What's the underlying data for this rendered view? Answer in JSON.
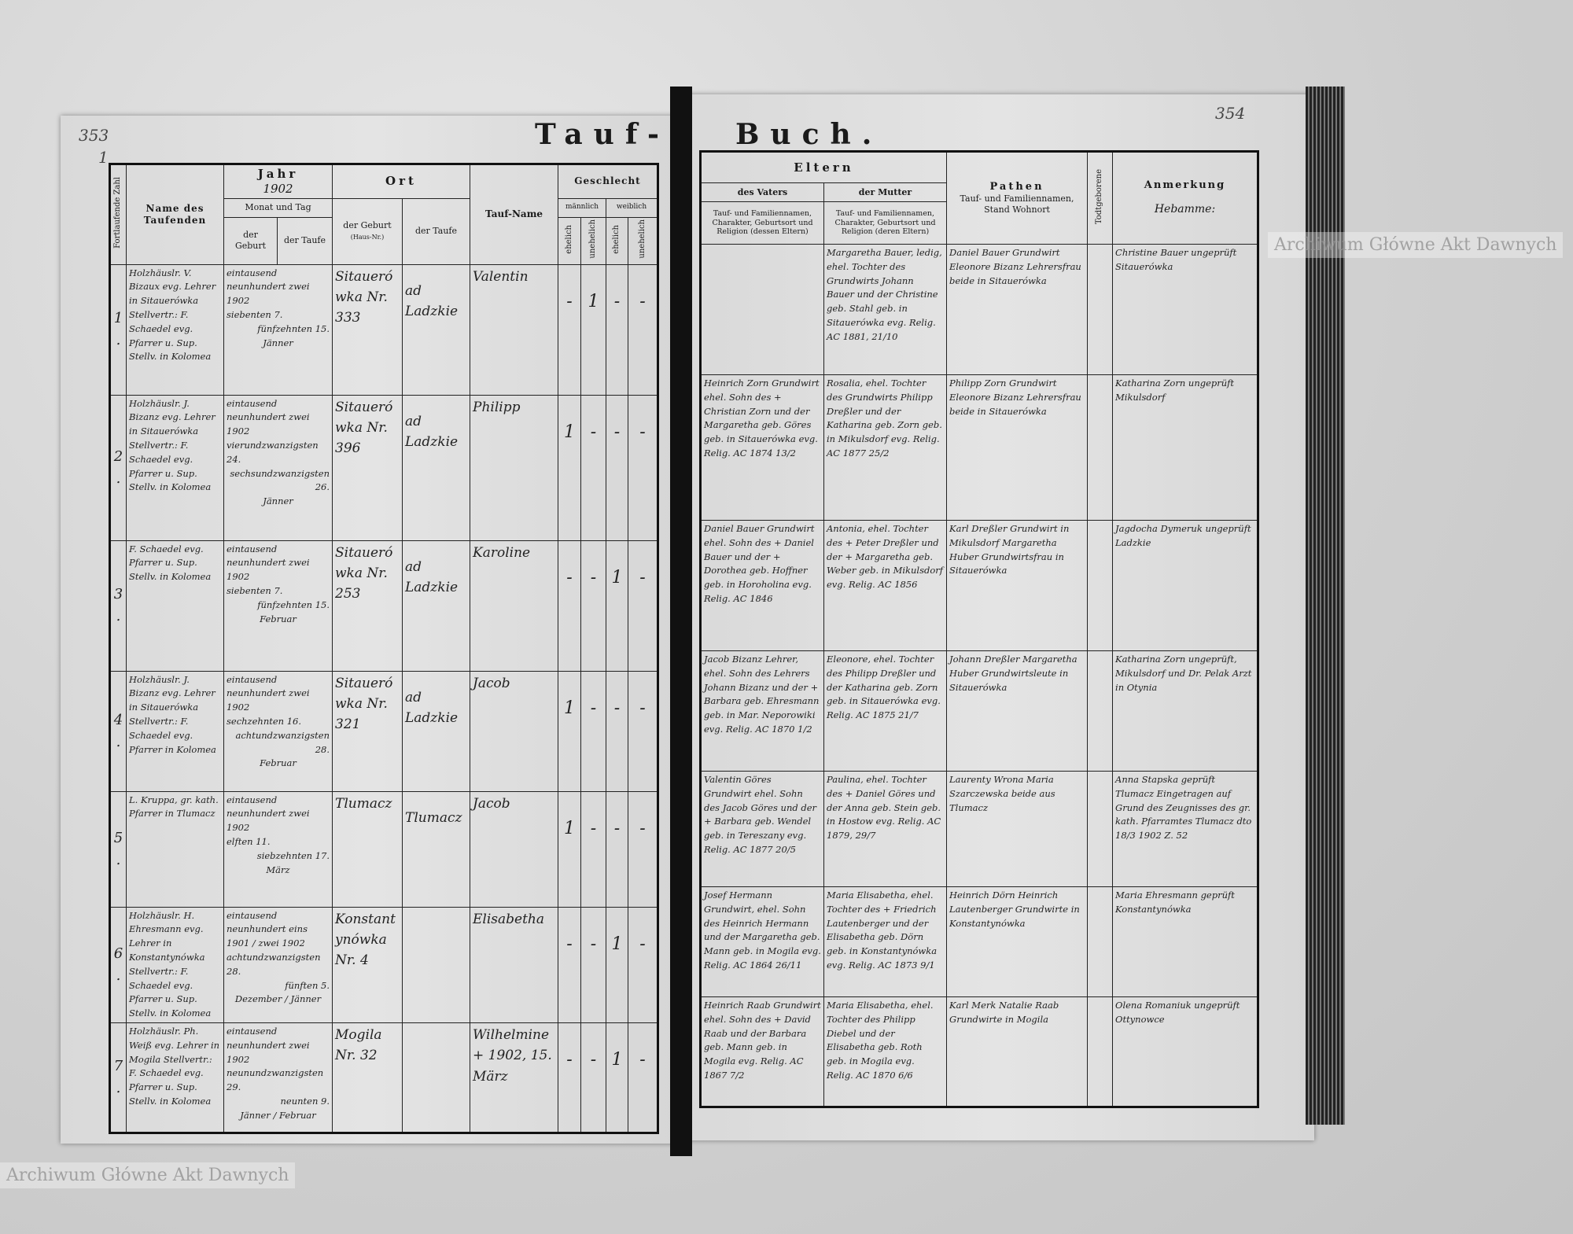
{
  "title_left": "Tauf-",
  "title_right": "Buch.",
  "page_numbers": {
    "left": "353",
    "left_sub": "1",
    "right": "354"
  },
  "watermark": "Archiwum Główne Akt Dawnych",
  "left_headers": {
    "zahl": "Fortlaufende Zahl",
    "name": "Name des Taufenden",
    "jahr": "Jahr",
    "jahr_value": "1902",
    "monat_tag": "Monat und Tag",
    "der_geburt": "der Geburt",
    "der_taufe": "der Taufe",
    "ort": "Ort",
    "ort_geburt": "der Geburt",
    "hausnr": "(Haus-Nr.)",
    "ort_taufe": "der Taufe",
    "taufname": "Tauf-Name",
    "geschlecht": "Geschlecht",
    "maennlich": "männlich",
    "weiblich": "weiblich",
    "ehelich": "ehelich",
    "unehelich": "unehelich"
  },
  "right_headers": {
    "eltern": "Eltern",
    "vater": "des Vaters",
    "mutter": "der Mutter",
    "vater_sub": "Tauf- und Familiennamen, Charakter, Geburtsort und Religion (dessen Eltern)",
    "mutter_sub": "Tauf- und Familiennamen, Charakter, Geburtsort und Religion (deren Eltern)",
    "pathen": "Pathen",
    "pathen_sub": "Tauf- und Familiennamen, Stand Wohnort",
    "todtgeborene": "Todtgeborene",
    "anmerkung": "Anmerkung",
    "anmerkung_note": "Hebamme:"
  },
  "entries": [
    {
      "no": "1.",
      "name": "Holzhäuslr. V. Bizaux evg. Lehrer in Sitauerówka Stellvertr.: F. Schaedel evg. Pfarrer u. Sup. Stellv. in Kolomea",
      "geburt": "siebenten 7.",
      "taufe": "fünfzehnten 15.",
      "year_words": "eintausend neunhundert zwei 1902",
      "month": "Jänner",
      "ort_geburt": "Sitauerówka Nr. 333",
      "ort_taufe": "ad Ladzkie",
      "taufname": "Valentin",
      "sex": [
        "-",
        "1",
        "-",
        "-"
      ],
      "vater": "",
      "mutter": "Margaretha Bauer, ledig, ehel. Tochter des Grundwirts Johann Bauer und der Christine geb. Stahl geb. in Sitauerówka evg. Relig. AC 1881, 21/10",
      "pathen": "Daniel Bauer Grundwirt Eleonore Bizanz Lehrersfrau beide in Sitauerówka",
      "tot": "",
      "anmerkung": "Christine Bauer ungeprüft Sitauerówka"
    },
    {
      "no": "2.",
      "name": "Holzhäuslr. J. Bizanz evg. Lehrer in Sitauerówka Stellvertr.: F. Schaedel evg. Pfarrer u. Sup. Stellv. in Kolomea",
      "geburt": "vierundzwanzigsten 24.",
      "taufe": "sechsundzwanzigsten 26.",
      "year_words": "eintausend neunhundert zwei 1902",
      "month": "Jänner",
      "ort_geburt": "Sitauerówka Nr. 396",
      "ort_taufe": "ad Ladzkie",
      "taufname": "Philipp",
      "sex": [
        "1",
        "-",
        "-",
        "-"
      ],
      "vater": "Heinrich Zorn Grundwirt ehel. Sohn des + Christian Zorn und der Margaretha geb. Göres geb. in Sitauerówka evg. Relig. AC 1874 13/2",
      "mutter": "Rosalia, ehel. Tochter des Grundwirts Philipp Dreßler und der Katharina geb. Zorn geb. in Mikulsdorf evg. Relig. AC 1877 25/2",
      "pathen": "Philipp Zorn Grundwirt Eleonore Bizanz Lehrersfrau beide in Sitauerówka",
      "tot": "",
      "anmerkung": "Katharina Zorn ungeprüft Mikulsdorf"
    },
    {
      "no": "3.",
      "name": "F. Schaedel evg. Pfarrer u. Sup. Stellv. in Kolomea",
      "geburt": "siebenten 7.",
      "taufe": "fünfzehnten 15.",
      "year_words": "eintausend neunhundert zwei 1902",
      "month": "Februar",
      "ort_geburt": "Sitauerówka Nr. 253",
      "ort_taufe": "ad Ladzkie",
      "taufname": "Karoline",
      "sex": [
        "-",
        "-",
        "1",
        "-"
      ],
      "vater": "Daniel Bauer Grundwirt ehel. Sohn des + Daniel Bauer und der + Dorothea geb. Hoffner geb. in Horoholina evg. Relig. AC 1846",
      "mutter": "Antonia, ehel. Tochter des + Peter Dreßler und der + Margaretha geb. Weber geb. in Mikulsdorf evg. Relig. AC 1856",
      "pathen": "Karl Dreßler Grundwirt in Mikulsdorf Margaretha Huber Grundwirtsfrau in Sitauerówka",
      "tot": "",
      "anmerkung": "Jagdocha Dymeruk ungeprüft Ladzkie"
    },
    {
      "no": "4.",
      "name": "Holzhäuslr. J. Bizanz evg. Lehrer in Sitauerówka Stellvertr.: F. Schaedel evg. Pfarrer in Kolomea",
      "geburt": "sechzehnten 16.",
      "taufe": "achtundzwanzigsten 28.",
      "year_words": "eintausend neunhundert zwei 1902",
      "month": "Februar",
      "ort_geburt": "Sitauerówka Nr. 321",
      "ort_taufe": "ad Ladzkie",
      "taufname": "Jacob",
      "sex": [
        "1",
        "-",
        "-",
        "-"
      ],
      "vater": "Jacob Bizanz Lehrer, ehel. Sohn des Lehrers Johann Bizanz und der + Barbara geb. Ehresmann geb. in Mar. Neporowiki evg. Relig. AC 1870 1/2",
      "mutter": "Eleonore, ehel. Tochter des Philipp Dreßler und der Katharina geb. Zorn geb. in Sitauerówka evg. Relig. AC 1875 21/7",
      "pathen": "Johann Dreßler Margaretha Huber Grundwirtsleute in Sitauerówka",
      "tot": "",
      "anmerkung": "Katharina Zorn ungeprüft, Mikulsdorf und Dr. Pelak Arzt in Otynia"
    },
    {
      "no": "5.",
      "name": "L. Kruppa, gr. kath. Pfarrer in Tlumacz",
      "geburt": "elften 11.",
      "taufe": "siebzehnten 17.",
      "year_words": "eintausend neunhundert zwei 1902",
      "month": "März",
      "ort_geburt": "Tlumacz",
      "ort_taufe": "Tlumacz",
      "taufname": "Jacob",
      "sex": [
        "1",
        "-",
        "-",
        "-"
      ],
      "vater": "Valentin Göres Grundwirt ehel. Sohn des Jacob Göres und der + Barbara geb. Wendel geb. in Tereszany evg. Relig. AC 1877 20/5",
      "mutter": "Paulina, ehel. Tochter des + Daniel Göres und der Anna geb. Stein geb. in Hostow evg. Relig. AC 1879, 29/7",
      "pathen": "Laurenty Wrona Maria Szarczewska beide aus Tlumacz",
      "tot": "",
      "anmerkung": "Anna Stapska geprüft Tlumacz Eingetragen auf Grund des Zeugnisses des gr. kath. Pfarramtes Tlumacz dto 18/3 1902 Z. 52"
    },
    {
      "no": "6.",
      "name": "Holzhäuslr. H. Ehresmann evg. Lehrer in Konstantynówka Stellvertr.: F. Schaedel evg. Pfarrer u. Sup. Stellv. in Kolomea",
      "geburt": "achtundzwanzigsten 28.",
      "taufe": "fünften 5.",
      "year_words": "eintausend neunhundert eins 1901 / zwei 1902",
      "month": "Dezember / Jänner",
      "ort_geburt": "Konstantynówka Nr. 4",
      "ort_taufe": "",
      "taufname": "Elisabetha",
      "sex": [
        "-",
        "-",
        "1",
        "-"
      ],
      "vater": "Josef Hermann Grundwirt, ehel. Sohn des Heinrich Hermann und der Margaretha geb. Mann geb. in Mogila evg. Relig. AC 1864 26/11",
      "mutter": "Maria Elisabetha, ehel. Tochter des + Friedrich Lautenberger und der Elisabetha geb. Dörn geb. in Konstantynówka evg. Relig. AC 1873 9/1",
      "pathen": "Heinrich Dörn Heinrich Lautenberger Grundwirte in Konstantynówka",
      "tot": "",
      "anmerkung": "Maria Ehresmann geprüft Konstantynówka"
    },
    {
      "no": "7.",
      "name": "Holzhäuslr. Ph. Weiß evg. Lehrer in Mogila Stellvertr.: F. Schaedel evg. Pfarrer u. Sup. Stellv. in Kolomea",
      "geburt": "neunundzwanzigsten 29.",
      "taufe": "neunten 9.",
      "year_words": "eintausend neunhundert zwei 1902",
      "month": "Jänner / Februar",
      "ort_geburt": "Mogila Nr. 32",
      "ort_taufe": "",
      "taufname": "Wilhelmine + 1902, 15. März",
      "sex": [
        "-",
        "-",
        "1",
        "-"
      ],
      "vater": "Heinrich Raab Grundwirt ehel. Sohn des + David Raab und der Barbara geb. Mann geb. in Mogila evg. Relig. AC 1867 7/2",
      "mutter": "Maria Elisabetha, ehel. Tochter des Philipp Diebel und der Elisabetha geb. Roth geb. in Mogila evg. Relig. AC 1870 6/6",
      "pathen": "Karl Merk Natalie Raab Grundwirte in Mogila",
      "tot": "",
      "anmerkung": "Olena Romaniuk ungeprüft Ottynowce"
    }
  ]
}
